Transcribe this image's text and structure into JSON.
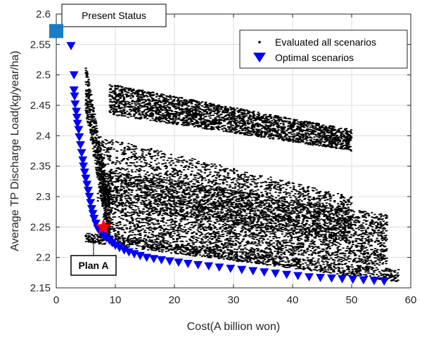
{
  "chart_data": {
    "type": "scatter",
    "xlabel": "Cost(A billion won)",
    "ylabel": "Average TP Discharge Load(kg/year/ha)",
    "xlim": [
      0,
      60
    ],
    "ylim": [
      2.15,
      2.6
    ],
    "xticks": [
      "0",
      "10",
      "20",
      "30",
      "40",
      "50",
      "60"
    ],
    "yticks": [
      "2.15",
      "2.2",
      "2.25",
      "2.3",
      "2.35",
      "2.4",
      "2.45",
      "2.5",
      "2.55",
      "2.6"
    ],
    "grid": true,
    "legend_position": "top-right",
    "series": [
      {
        "name": "Evaluated all scenarios",
        "marker": "dot",
        "color": "#000000",
        "clusters": [
          {
            "x_range": [
              9,
              50
            ],
            "y_top": [
              2.485,
              2.41
            ],
            "y_bottom": [
              2.435,
              2.375
            ],
            "count": 2600
          },
          {
            "x_range": [
              7,
              50
            ],
            "y_top": [
              2.4,
              2.3
            ],
            "y_bottom": [
              2.29,
              2.225
            ],
            "count": 2200
          },
          {
            "x_range": [
              8,
              56
            ],
            "y_top": [
              2.345,
              2.27
            ],
            "y_bottom": [
              2.235,
              2.185
            ],
            "count": 3600
          },
          {
            "x_range": [
              5,
              58
            ],
            "y_top": [
              2.24,
              2.18
            ],
            "y_bottom": [
              2.225,
              2.16
            ],
            "count": 1200
          },
          {
            "x_range": [
              5,
              9
            ],
            "y_top": [
              2.52,
              2.3
            ],
            "y_bottom": [
              2.44,
              2.22
            ],
            "count": 600
          }
        ]
      },
      {
        "name": "Optimal scenarios",
        "marker": "triangle-down",
        "color": "#0000ff",
        "x": [
          2.5,
          3.0,
          3.0,
          3.1,
          3.2,
          3.4,
          3.5,
          3.6,
          3.8,
          3.9,
          4.1,
          4.3,
          4.5,
          4.6,
          4.8,
          5.0,
          5.2,
          5.4,
          5.6,
          5.8,
          6.0,
          6.2,
          6.4,
          6.7,
          7.0,
          7.3,
          7.6,
          8.0,
          8.5,
          9.0,
          9.5,
          10.0,
          10.7,
          11.5,
          12.3,
          13.2,
          14.2,
          15.3,
          16.5,
          17.8,
          19.2,
          20.7,
          22.3,
          24.0,
          25.8,
          27.6,
          29.5,
          31.4,
          33.3,
          35.2,
          37.1,
          39.0,
          40.9,
          42.8,
          44.7,
          46.6,
          48.4,
          50.2,
          52.0,
          53.8,
          55.5
        ],
        "y": [
          2.548,
          2.5,
          2.475,
          2.465,
          2.452,
          2.44,
          2.43,
          2.42,
          2.41,
          2.398,
          2.385,
          2.372,
          2.36,
          2.35,
          2.34,
          2.33,
          2.32,
          2.31,
          2.3,
          2.29,
          2.28,
          2.272,
          2.264,
          2.256,
          2.248,
          2.244,
          2.24,
          2.236,
          2.232,
          2.228,
          2.224,
          2.22,
          2.216,
          2.212,
          2.209,
          2.206,
          2.203,
          2.2,
          2.198,
          2.196,
          2.194,
          2.192,
          2.19,
          2.188,
          2.186,
          2.184,
          2.182,
          2.18,
          2.178,
          2.176,
          2.174,
          2.172,
          2.17,
          2.168,
          2.167,
          2.166,
          2.165,
          2.164,
          2.163,
          2.162,
          2.161
        ]
      }
    ],
    "annotations": [
      {
        "label": "Present Status",
        "marker": "square",
        "color": "#1a7dc4",
        "x": 0,
        "y": 2.572
      },
      {
        "label": "Plan A",
        "marker": "star",
        "color": "#ff0000",
        "x": 8,
        "y": 2.25
      }
    ]
  }
}
